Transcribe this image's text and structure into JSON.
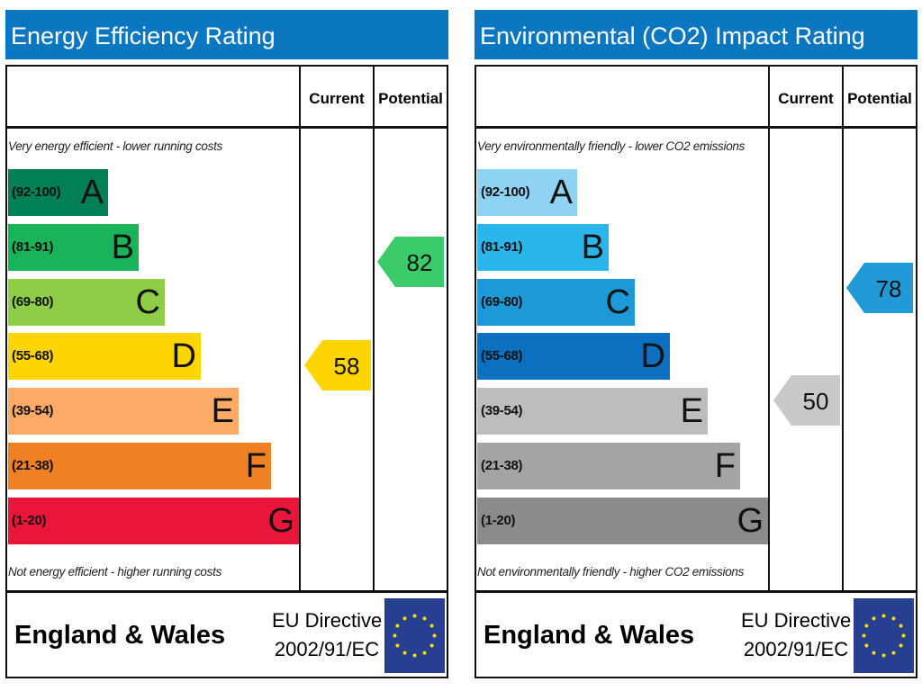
{
  "chart_data": [
    {
      "type": "bar",
      "title": "Energy Efficiency Rating",
      "columns": [
        "Current",
        "Potential"
      ],
      "top_note": "Very energy efficient - lower running costs",
      "bottom_note": "Not energy efficient - higher running costs",
      "bands": [
        {
          "range": "(92-100)",
          "letter": "A",
          "color": "#008054"
        },
        {
          "range": "(81-91)",
          "letter": "B",
          "color": "#19b459"
        },
        {
          "range": "(69-80)",
          "letter": "C",
          "color": "#8dce46"
        },
        {
          "range": "(55-68)",
          "letter": "D",
          "color": "#ffd500"
        },
        {
          "range": "(39-54)",
          "letter": "E",
          "color": "#fcaa65"
        },
        {
          "range": "(21-38)",
          "letter": "F",
          "color": "#ef8023"
        },
        {
          "range": "(1-20)",
          "letter": "G",
          "color": "#e9153b"
        }
      ],
      "current": {
        "value": "58",
        "band": "D",
        "color": "#ffd500"
      },
      "potential": {
        "value": "82",
        "band": "B",
        "color": "#3ccb6a"
      },
      "footer": {
        "region": "England & Wales",
        "directive_line1": "EU Directive",
        "directive_line2": "2002/91/EC"
      }
    },
    {
      "type": "bar",
      "title": "Environmental (CO2) Impact Rating",
      "columns": [
        "Current",
        "Potential"
      ],
      "top_note": "Very environmentally friendly - lower CO2 emissions",
      "bottom_note": "Not environmentally friendly - higher CO2 emissions",
      "bands": [
        {
          "range": "(92-100)",
          "letter": "A",
          "color": "#8fd3f4"
        },
        {
          "range": "(81-91)",
          "letter": "B",
          "color": "#2ab6ea"
        },
        {
          "range": "(69-80)",
          "letter": "C",
          "color": "#1c9ad8"
        },
        {
          "range": "(55-68)",
          "letter": "D",
          "color": "#0d6fc0"
        },
        {
          "range": "(39-54)",
          "letter": "E",
          "color": "#bcbdbf"
        },
        {
          "range": "(21-38)",
          "letter": "F",
          "color": "#a3a4a6"
        },
        {
          "range": "(1-20)",
          "letter": "G",
          "color": "#8a8b8d"
        }
      ],
      "current": {
        "value": "50",
        "band": "E",
        "color": "#c8c9cb"
      },
      "potential": {
        "value": "78",
        "band": "C",
        "color": "#1f9ad6"
      },
      "footer": {
        "region": "England & Wales",
        "directive_line1": "EU Directive",
        "directive_line2": "2002/91/EC"
      }
    }
  ]
}
